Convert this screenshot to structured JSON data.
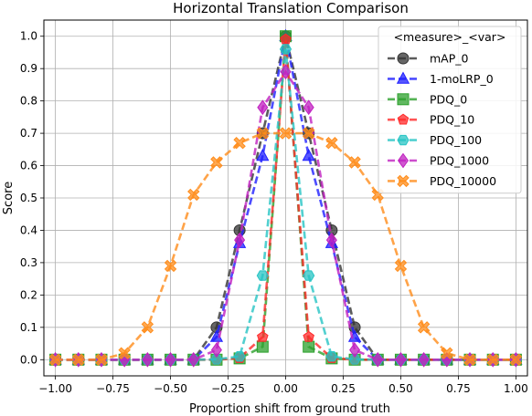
{
  "chart_data": {
    "type": "line",
    "title": "Horizontal Translation Comparison",
    "xlabel": "Proportion shift from ground truth",
    "ylabel": "Score",
    "xlim": [
      -1.05,
      1.05
    ],
    "ylim": [
      -0.05,
      1.05
    ],
    "grid": true,
    "legend_title": "<measure>_<var>",
    "legend_position": "top-right",
    "x_ticks": [
      -1.0,
      -0.75,
      -0.5,
      -0.25,
      0.0,
      0.25,
      0.5,
      0.75,
      1.0
    ],
    "x_tick_labels": [
      "−1.00",
      "−0.75",
      "−0.50",
      "−0.25",
      "0.00",
      "0.25",
      "0.50",
      "0.75",
      "1.00"
    ],
    "y_ticks": [
      0.0,
      0.1,
      0.2,
      0.3,
      0.4,
      0.5,
      0.6,
      0.7,
      0.8,
      0.9,
      1.0
    ],
    "y_tick_labels": [
      "0.0",
      "0.1",
      "0.2",
      "0.3",
      "0.4",
      "0.5",
      "0.6",
      "0.7",
      "0.8",
      "0.9",
      "1.0"
    ],
    "x": [
      -1.0,
      -0.9,
      -0.8,
      -0.7,
      -0.6,
      -0.5,
      -0.4,
      -0.3,
      -0.2,
      -0.1,
      0.0,
      0.1,
      0.2,
      0.3,
      0.4,
      0.5,
      0.6,
      0.7,
      0.8,
      0.9,
      1.0
    ],
    "series": [
      {
        "name": "mAP_0",
        "color": "#333333",
        "marker": "circle",
        "values": [
          0,
          0,
          0,
          0,
          0,
          0,
          0,
          0.1,
          0.4,
          0.7,
          1.0,
          0.7,
          0.4,
          0.1,
          0,
          0,
          0,
          0,
          0,
          0,
          0
        ]
      },
      {
        "name": "1-moLRP_0",
        "color": "#1f1fff",
        "marker": "triangle",
        "values": [
          0,
          0,
          0,
          0,
          0,
          0,
          0,
          0.07,
          0.36,
          0.63,
          1.0,
          0.63,
          0.36,
          0.07,
          0,
          0,
          0,
          0,
          0,
          0,
          0
        ]
      },
      {
        "name": "PDQ_0",
        "color": "#2ca02c",
        "marker": "square",
        "values": [
          0,
          0,
          0,
          0,
          0,
          0,
          0,
          0,
          0.004,
          0.04,
          1.0,
          0.04,
          0.004,
          0,
          0,
          0,
          0,
          0,
          0,
          0,
          0
        ]
      },
      {
        "name": "PDQ_10",
        "color": "#ff2a2a",
        "marker": "pentagon",
        "values": [
          0,
          0,
          0,
          0,
          0,
          0,
          0,
          0,
          0.005,
          0.07,
          0.99,
          0.07,
          0.005,
          0,
          0,
          0,
          0,
          0,
          0,
          0,
          0
        ]
      },
      {
        "name": "PDQ_100",
        "color": "#27c4c4",
        "marker": "hexagon",
        "values": [
          0,
          0,
          0,
          0,
          0,
          0,
          0,
          0.001,
          0.01,
          0.26,
          0.96,
          0.26,
          0.01,
          0.001,
          0,
          0,
          0,
          0,
          0,
          0,
          0
        ]
      },
      {
        "name": "PDQ_1000",
        "color": "#c020c0",
        "marker": "diamond",
        "values": [
          0,
          0,
          0,
          0,
          0,
          0,
          0,
          0.03,
          0.37,
          0.78,
          0.89,
          0.78,
          0.37,
          0.03,
          0,
          0,
          0,
          0,
          0,
          0,
          0
        ]
      },
      {
        "name": "PDQ_10000",
        "color": "#ff8c1a",
        "marker": "x",
        "values": [
          0,
          0,
          0,
          0.02,
          0.1,
          0.29,
          0.51,
          0.61,
          0.67,
          0.7,
          0.7,
          0.7,
          0.67,
          0.61,
          0.51,
          0.29,
          0.1,
          0.02,
          0,
          0,
          0
        ]
      }
    ]
  }
}
